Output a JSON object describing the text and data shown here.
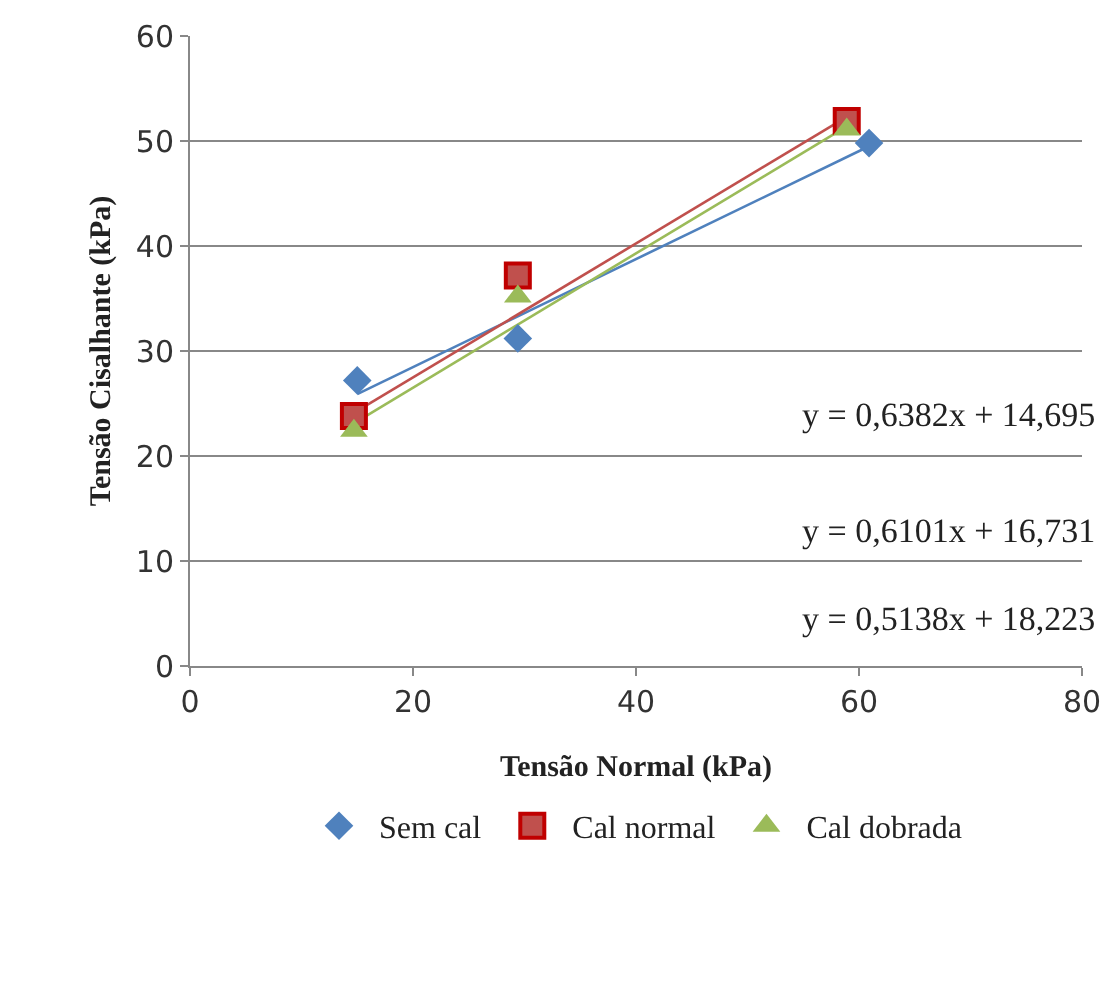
{
  "chart_data": {
    "type": "scatter",
    "xlabel": "Tensão Normal (kPa)",
    "ylabel": "Tensão Cisalhante (kPa)",
    "xlim": [
      0,
      80
    ],
    "xticks": [
      0,
      20,
      40,
      60,
      80
    ],
    "ylim": [
      0,
      60
    ],
    "yticks": [
      0,
      10,
      20,
      30,
      40,
      50,
      60
    ],
    "grid": "y",
    "legend": "bottom",
    "series": [
      {
        "name": "Sem cal",
        "color": "#4f81bd",
        "marker": "diamond",
        "x": [
          15,
          29.4,
          60.9
        ],
        "values": [
          27.2,
          31.2,
          49.8
        ]
      },
      {
        "name": "Cal normal",
        "color": "#c0504d",
        "marker": "square",
        "x": [
          14.7,
          29.4,
          58.9
        ],
        "values": [
          23.8,
          37.2,
          51.9
        ]
      },
      {
        "name": "Cal dobrada",
        "color": "#9bbb59",
        "marker": "triangle",
        "x": [
          14.7,
          29.4,
          58.9
        ],
        "values": [
          22.4,
          35.2,
          51.1
        ]
      },
      {
        "type": "line",
        "color": "#4f81bd",
        "marker": "none",
        "x": [
          15,
          60.9
        ],
        "values": [
          25.9,
          49.5
        ]
      },
      {
        "type": "line",
        "color": "#c0504d",
        "marker": "none",
        "x": [
          14.7,
          58.9
        ],
        "values": [
          24.1,
          52.3
        ]
      },
      {
        "type": "line",
        "color": "#9bbb59",
        "marker": "none",
        "x": [
          14.7,
          58.9
        ],
        "values": [
          23.1,
          51.4
        ]
      }
    ],
    "annotations": [
      "y = 0,6382x + 14,695",
      "y = 0,6101x + 16,731",
      "y = 0,5138x + 18,223"
    ]
  }
}
